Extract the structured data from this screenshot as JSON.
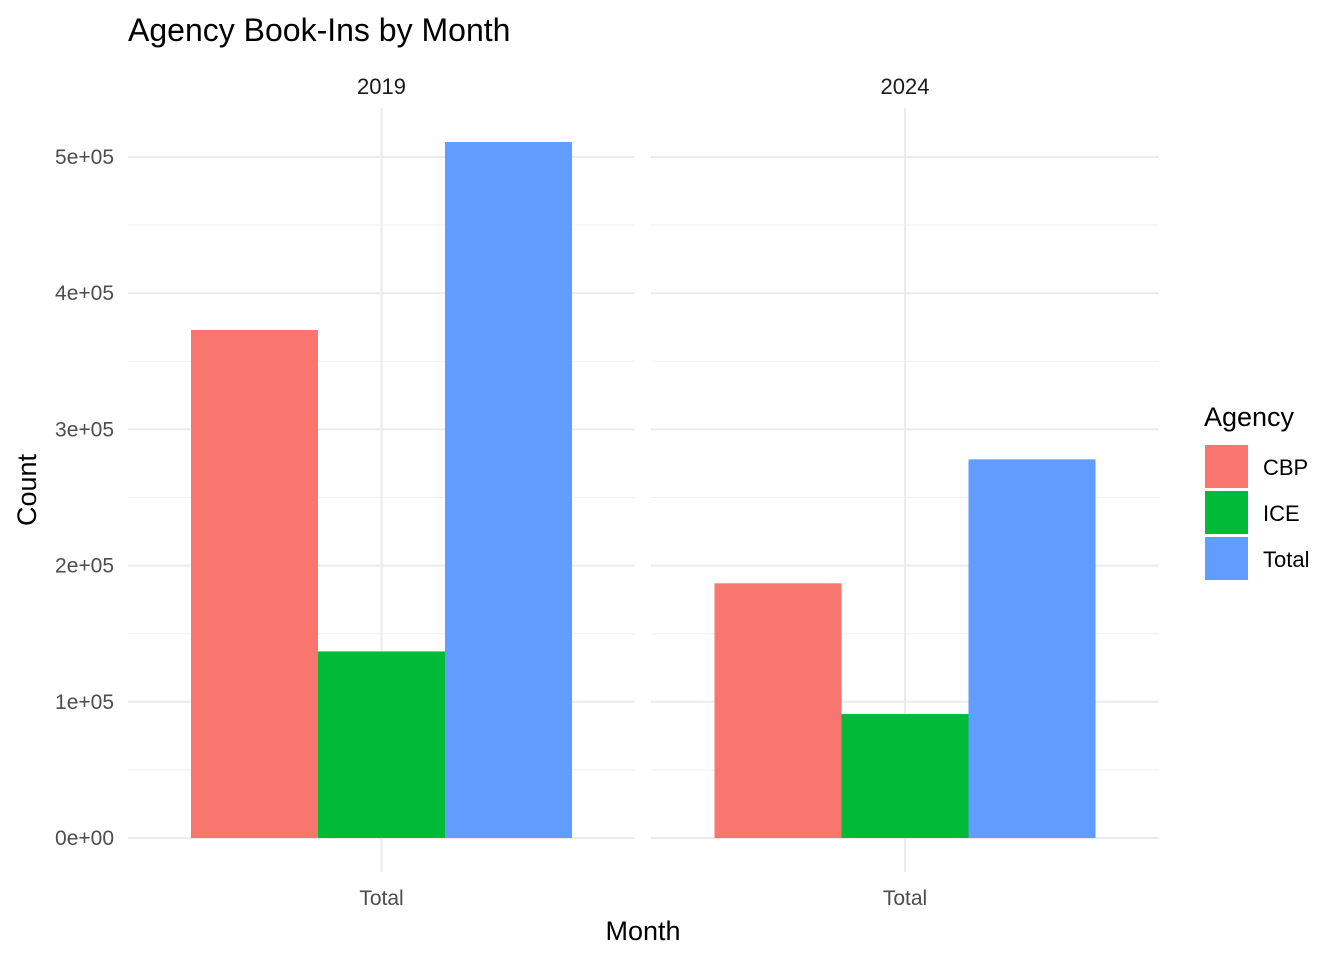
{
  "chart_data": {
    "type": "bar",
    "title": "Agency Book-Ins by Month",
    "xlabel": "Month",
    "ylabel": "Count",
    "ylim": [
      0,
      525000
    ],
    "y_ticks": [
      0,
      100000,
      200000,
      300000,
      400000,
      500000
    ],
    "y_tick_labels": [
      "0e+00",
      "1e+05",
      "2e+05",
      "3e+05",
      "4e+05",
      "5e+05"
    ],
    "grid": true,
    "legend": {
      "title": "Agency",
      "position": "right",
      "entries": [
        "CBP",
        "ICE",
        "Total"
      ]
    },
    "colors": {
      "CBP": "#F8766D",
      "ICE": "#00BA38",
      "Total": "#619CFF"
    },
    "facets": [
      {
        "label": "2019",
        "categories": [
          "Total"
        ],
        "series": [
          {
            "name": "CBP",
            "values": [
              373000
            ]
          },
          {
            "name": "ICE",
            "values": [
              137000
            ]
          },
          {
            "name": "Total",
            "values": [
              511000
            ]
          }
        ]
      },
      {
        "label": "2024",
        "categories": [
          "Total"
        ],
        "series": [
          {
            "name": "CBP",
            "values": [
              187000
            ]
          },
          {
            "name": "ICE",
            "values": [
              91000
            ]
          },
          {
            "name": "Total",
            "values": [
              278000
            ]
          }
        ]
      }
    ]
  }
}
